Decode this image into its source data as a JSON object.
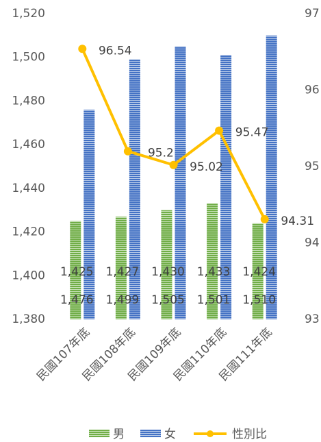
{
  "chart_data": {
    "type": "bar",
    "categories": [
      "民國107年底",
      "民國108年底",
      "民國109年底",
      "民國110年底",
      "民國111年底"
    ],
    "series": [
      {
        "name": "男",
        "color": "#70ad47",
        "values": [
          1425,
          1427,
          1430,
          1433,
          1424
        ],
        "value_labels": [
          "1,425",
          "1,427",
          "1,430",
          "1,433",
          "1,424"
        ]
      },
      {
        "name": "女",
        "color": "#4472c4",
        "values": [
          1476,
          1499,
          1505,
          1501,
          1510
        ],
        "value_labels": [
          "1,476",
          "1,499",
          "1,505",
          "1,501",
          "1,510"
        ]
      },
      {
        "name": "性別比",
        "type": "line",
        "axis": "y2",
        "color": "#ffc000",
        "values": [
          96.54,
          95.2,
          95.02,
          95.47,
          94.31
        ]
      }
    ],
    "ylim": [
      1380,
      1520
    ],
    "yticks": [
      {
        "value": 1380,
        "label": "1,380"
      },
      {
        "value": 1400,
        "label": "1,400"
      },
      {
        "value": 1420,
        "label": "1,420"
      },
      {
        "value": 1440,
        "label": "1,440"
      },
      {
        "value": 1460,
        "label": "1,460"
      },
      {
        "value": 1480,
        "label": "1,480"
      },
      {
        "value": 1500,
        "label": "1,500"
      },
      {
        "value": 1520,
        "label": "1,520"
      }
    ],
    "y2lim": [
      93,
      97
    ],
    "y2ticks": [
      93,
      94,
      95,
      96,
      97
    ],
    "legend": "bottom"
  }
}
